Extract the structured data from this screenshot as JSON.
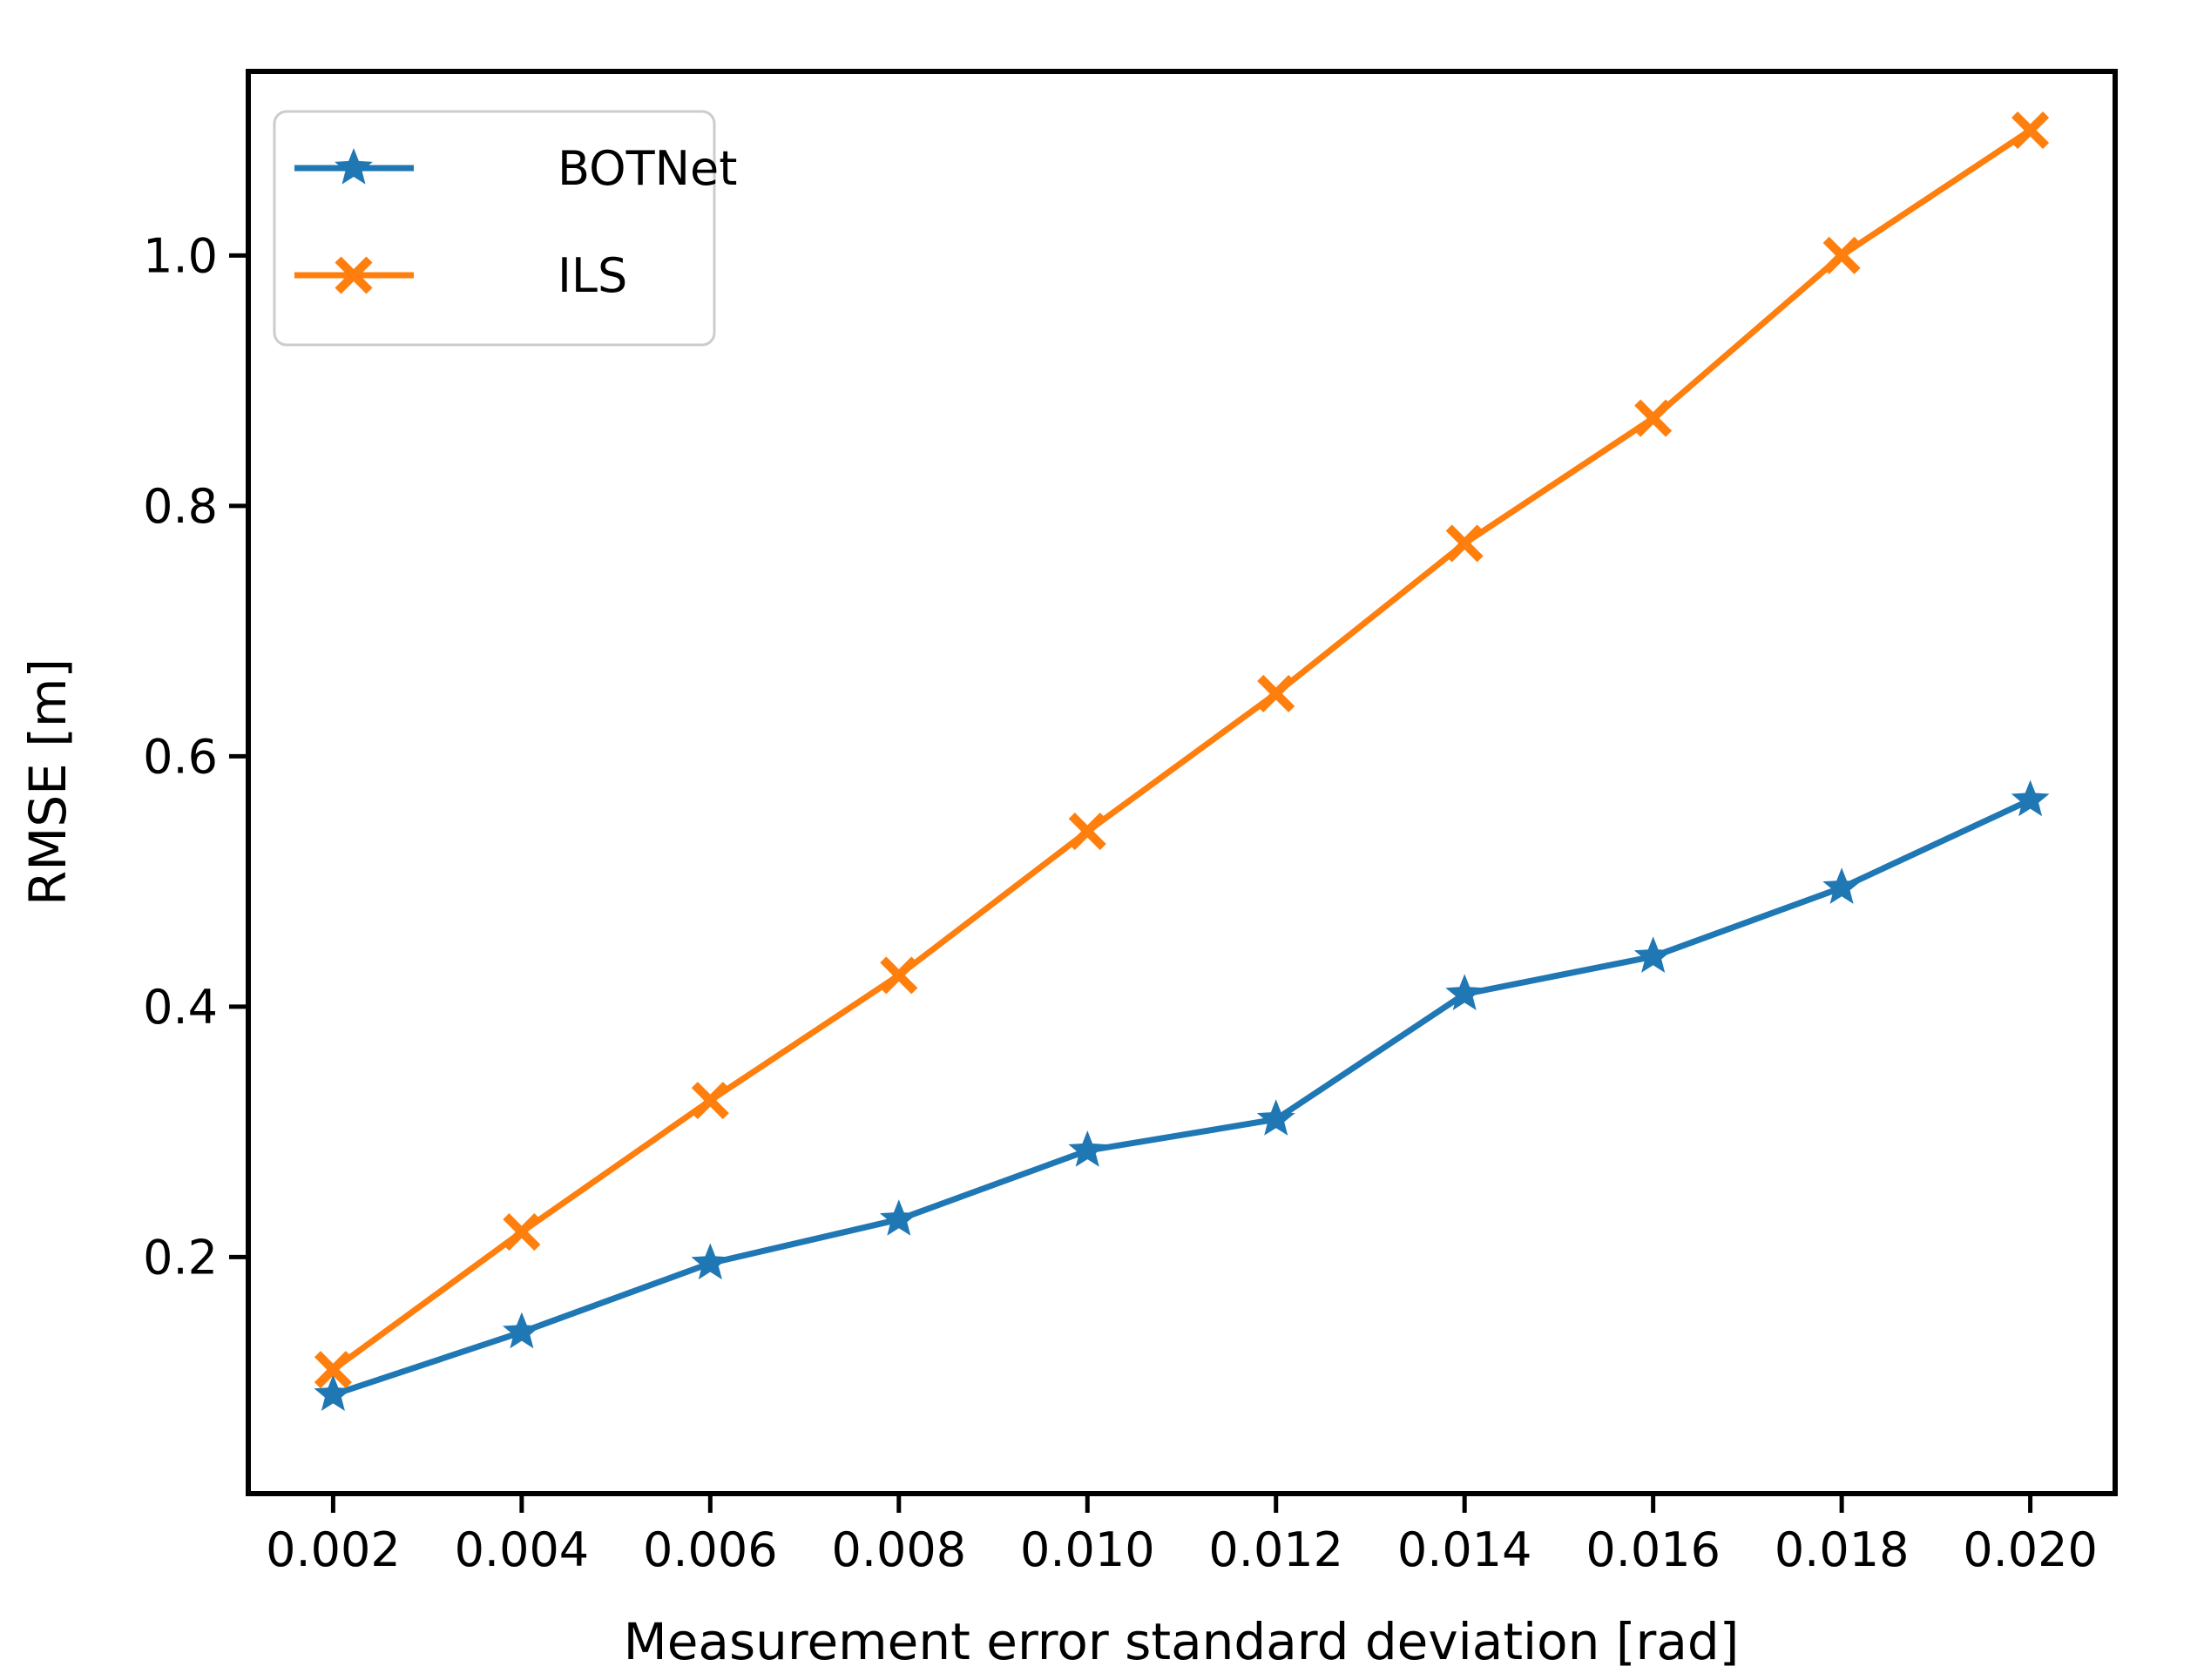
{
  "chart_data": {
    "type": "line",
    "title": "",
    "xlabel": "Measurement error standard deviation [rad]",
    "ylabel": "RMSE [m]",
    "x": [
      0.002,
      0.004,
      0.006,
      0.008,
      0.01,
      0.012,
      0.014,
      0.016,
      0.018,
      0.02
    ],
    "series": [
      {
        "name": "BOTNet",
        "color": "#1f77b4",
        "marker": "star",
        "values": [
          0.09,
          0.14,
          0.195,
          0.23,
          0.285,
          0.31,
          0.41,
          0.44,
          0.495,
          0.565
        ]
      },
      {
        "name": "ILS",
        "color": "#ff7f0e",
        "marker": "x",
        "values": [
          0.11,
          0.22,
          0.325,
          0.425,
          0.54,
          0.65,
          0.77,
          0.87,
          1.0,
          1.1
        ]
      }
    ],
    "xticks": {
      "values": [
        0.002,
        0.004,
        0.006,
        0.008,
        0.01,
        0.012,
        0.014,
        0.016,
        0.018,
        0.02
      ],
      "labels": [
        "0.002",
        "0.004",
        "0.006",
        "0.008",
        "0.010",
        "0.012",
        "0.014",
        "0.016",
        "0.018",
        "0.020"
      ]
    },
    "yticks": {
      "values": [
        0.2,
        0.4,
        0.6,
        0.8,
        1.0
      ],
      "labels": [
        "0.2",
        "0.4",
        "0.6",
        "0.8",
        "1.0"
      ]
    },
    "xlim": [
      0.0011,
      0.0209
    ],
    "ylim": [
      0.011,
      1.147
    ],
    "grid": false,
    "legend_position": "upper left",
    "colors": {
      "spine": "#000000",
      "text": "#000000",
      "legend_border": "#cccccc",
      "background": "#ffffff"
    }
  }
}
